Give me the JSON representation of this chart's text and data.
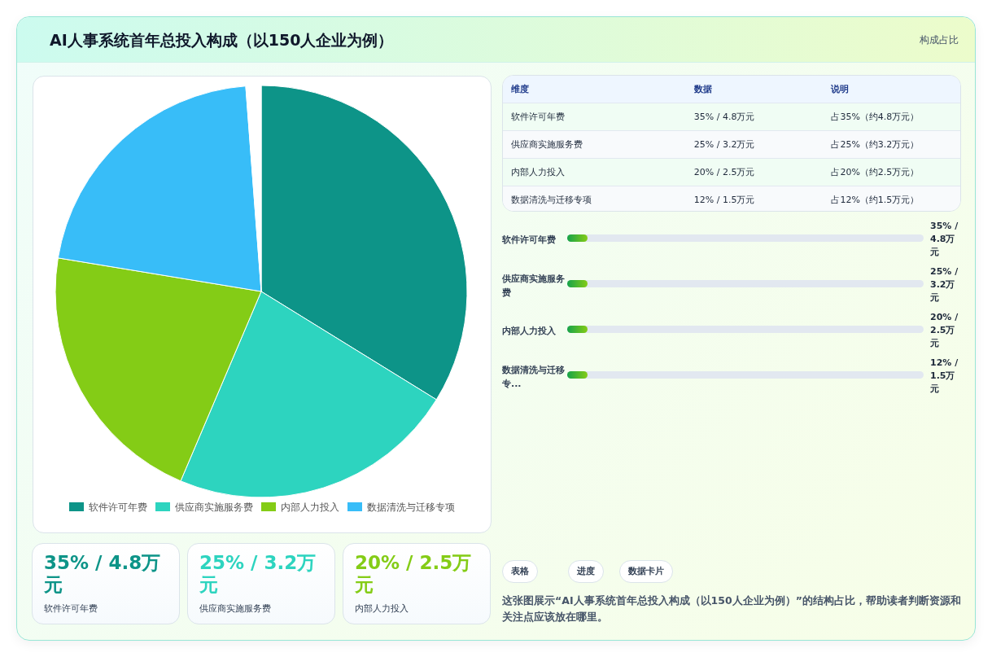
{
  "chart_data": [
    {
      "type": "other",
      "title": "AI人事系统首年总投入构成（以150人企业为例）",
      "annotations": [
        "构成占比"
      ]
    },
    {
      "type": "pie",
      "categories": [
        "软件许可年费",
        "供应商实施服务费",
        "内部人力投入",
        "数据清洗与迁移专项",
        null
      ],
      "values": [
        33.8,
        22.6,
        21.2,
        21.2,
        1.2
      ],
      "colors": [
        "#0d9488",
        "#2dd4bf",
        "#84cc16",
        "#38bdf8",
        "#ffffff"
      ],
      "legend": "bottom"
    },
    {
      "type": "other",
      "legend_title": "维度",
      "categories": [
        "数据",
        "说明"
      ],
      "y_categories": [
        "软件许可年费",
        "供应商实施服务费",
        "内部人力投入",
        "数据清洗与迁移专项"
      ],
      "cell_labels": [
        [
          "35% / 4.8万元",
          "占35%（约4.8万元）"
        ],
        [
          "25% / 3.2万元",
          "占25%（约3.2万元）"
        ],
        [
          "20% / 2.5万元",
          "占20%（约2.5万元）"
        ],
        [
          "12% / 1.5万元",
          "占12%（约1.5万元）"
        ]
      ]
    },
    {
      "type": "other",
      "categories": [
        "软件许可年费",
        "供应商实施服务费",
        "内部人力投入",
        "数据清洗与迁移专..."
      ],
      "value_labels": [
        "35% / 4.8万元",
        "25% / 3.2万元",
        "20% / 2.5万元",
        "12% / 1.5万元"
      ]
    },
    {
      "type": "other",
      "categories": [
        "软件许可年费",
        "供应商实施服务费",
        "内部人力投入"
      ],
      "value_labels": [
        "35% / 4.8万元",
        "25% / 3.2万元",
        "20% / 2.5万元"
      ]
    },
    {
      "type": "other",
      "annotations": [
        "表格",
        "进度",
        "数据卡片",
        "这张图展示“AI人事系统首年总投入构成（以150人企业为例）”的结构占比，帮助读者判断资源和关注点应该放在哪里。"
      ]
    }
  ]
}
